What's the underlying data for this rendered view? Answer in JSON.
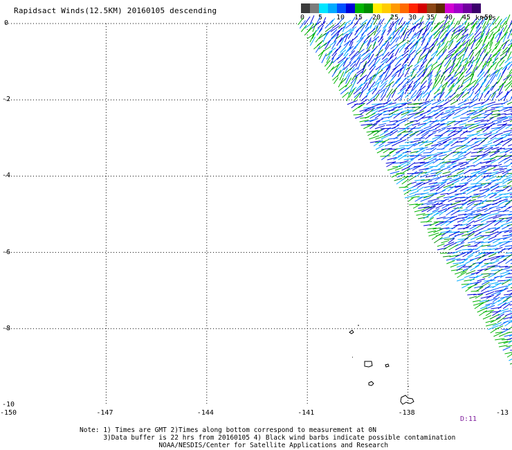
{
  "title": "Rapidsact Winds(12.5KM) 20160105 descending",
  "legend": {
    "colors": [
      "#3c3c3c",
      "#7c7c7c",
      "#00e5ff",
      "#00aaff",
      "#0050ff",
      "#0000d8",
      "#00b400",
      "#008c00",
      "#ffee00",
      "#ffcc00",
      "#ff9900",
      "#ff6a00",
      "#ff2200",
      "#d40000",
      "#8b4513",
      "#5c2a00",
      "#d200d2",
      "#a000c8",
      "#70009e",
      "#3b006b"
    ],
    "labels": [
      "0",
      "5",
      "10",
      "15",
      "20",
      "25",
      "30",
      "35",
      "40",
      "45",
      ">50"
    ],
    "unit": "knots"
  },
  "axes": {
    "y_labels": [
      "0",
      "-2",
      "-4",
      "-6",
      "-8",
      "-10"
    ],
    "x_labels": [
      "-150",
      "-147",
      "-144",
      "-141",
      "-138",
      "-13"
    ]
  },
  "notes": [
    "Note: 1) Times are GMT 2)Times along bottom correspond to measurement at 0N",
    "      3)Data buffer is 22 hrs from 20160105 4) Black wind barbs indicate possible contamination",
    "                    NOAA/NESDIS/Center for Satellite Applications and Research"
  ],
  "time_label": "D:11",
  "map_extent": {
    "lon": [
      -150,
      -135
    ],
    "lat": [
      -10,
      0
    ]
  }
}
